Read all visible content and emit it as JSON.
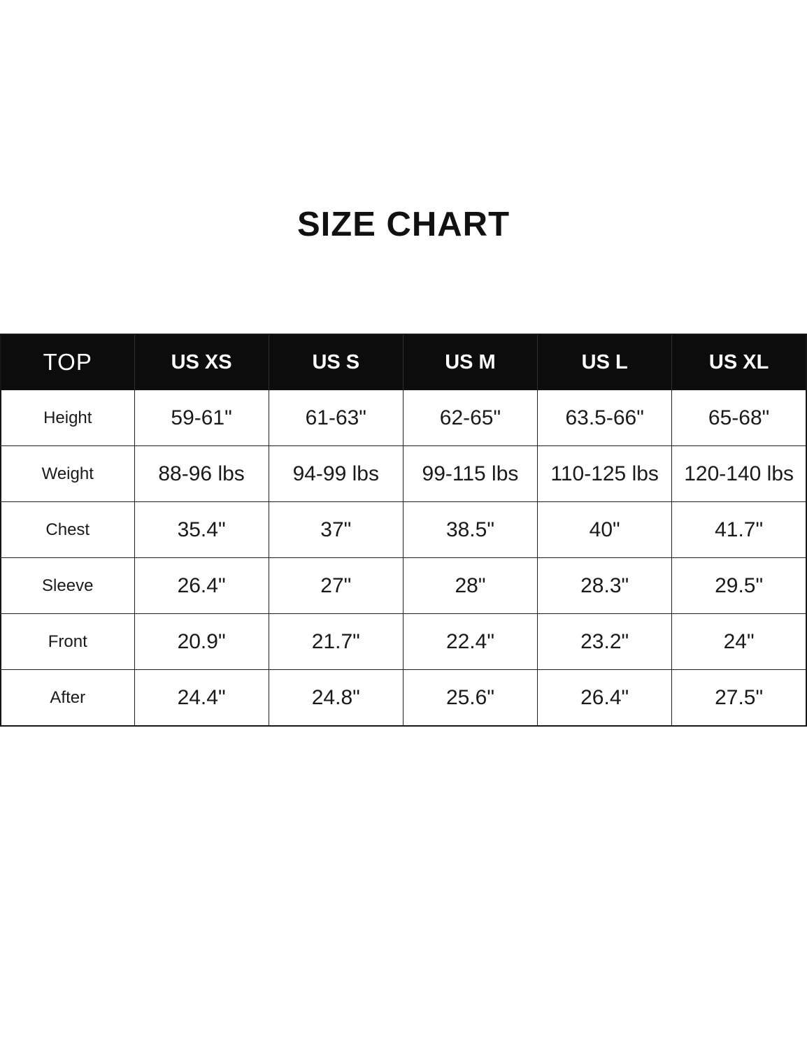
{
  "page": {
    "title": "SIZE CHART"
  },
  "colors": {
    "page_bg": "#ffffff",
    "header_bg": "#0c0c0c",
    "header_text": "#ffffff",
    "body_text": "#1a1a1a",
    "border": "#1f1f1f"
  },
  "chart_data": {
    "type": "table",
    "title": "SIZE CHART",
    "columns": [
      "TOP",
      "US XS",
      "US S",
      "US M",
      "US L",
      "US XL"
    ],
    "rows": [
      [
        "Height",
        "59-61\"",
        "61-63\"",
        "62-65\"",
        "63.5-66\"",
        "65-68\""
      ],
      [
        "Weight",
        "88-96 lbs",
        "94-99 lbs",
        "99-115 lbs",
        "110-125 lbs",
        "120-140 lbs"
      ],
      [
        "Chest",
        "35.4\"",
        "37\"",
        "38.5\"",
        "40\"",
        "41.7\""
      ],
      [
        "Sleeve",
        "26.4\"",
        "27\"",
        "28\"",
        "28.3\"",
        "29.5\""
      ],
      [
        "Front",
        "20.9\"",
        "21.7\"",
        "22.4\"",
        "23.2\"",
        "24\""
      ],
      [
        "After",
        "24.4\"",
        "24.8\"",
        "25.6\"",
        "26.4\"",
        "27.5\""
      ]
    ]
  }
}
